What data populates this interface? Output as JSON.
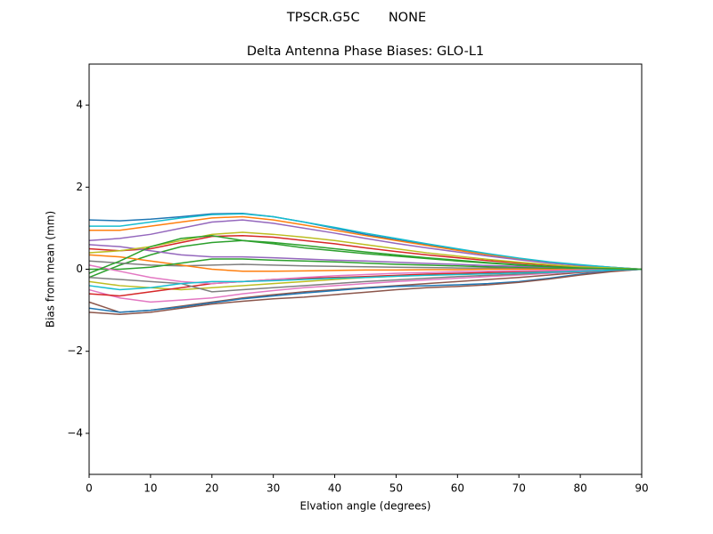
{
  "chart_data": {
    "type": "line",
    "suptitle": "TPSCR.G5C       NONE",
    "title": "Delta Antenna Phase Biases: GLO-L1",
    "xlabel": "Elvation angle (degrees)",
    "ylabel": "Bias from mean (mm)",
    "x": [
      0,
      5,
      10,
      15,
      20,
      25,
      30,
      35,
      40,
      45,
      50,
      55,
      60,
      65,
      70,
      75,
      80,
      85,
      90
    ],
    "xlim": [
      0,
      90
    ],
    "xticks": [
      0,
      10,
      20,
      30,
      40,
      50,
      60,
      70,
      80,
      90
    ],
    "ylim": [
      -5,
      5
    ],
    "yticks": [
      {
        "value": -4,
        "label": "−4"
      },
      {
        "value": -2,
        "label": "−2"
      },
      0,
      2,
      4
    ],
    "series": [
      {
        "color": "#1f77b4",
        "values": [
          1.2,
          1.18,
          1.22,
          1.28,
          1.35,
          1.36,
          1.28,
          1.15,
          1.0,
          0.85,
          0.72,
          0.6,
          0.48,
          0.36,
          0.26,
          0.17,
          0.1,
          0.05,
          0
        ]
      },
      {
        "color": "#ff7f0e",
        "values": [
          0.95,
          0.95,
          1.05,
          1.15,
          1.25,
          1.28,
          1.2,
          1.08,
          0.95,
          0.82,
          0.7,
          0.58,
          0.46,
          0.35,
          0.25,
          0.17,
          0.1,
          0.05,
          0
        ]
      },
      {
        "color": "#2ca02c",
        "values": [
          -0.2,
          0.1,
          0.35,
          0.55,
          0.65,
          0.7,
          0.65,
          0.58,
          0.5,
          0.42,
          0.35,
          0.28,
          0.22,
          0.16,
          0.11,
          0.07,
          0.04,
          0.02,
          0
        ]
      },
      {
        "color": "#d62728",
        "values": [
          0.5,
          0.45,
          0.5,
          0.65,
          0.8,
          0.82,
          0.78,
          0.7,
          0.62,
          0.52,
          0.43,
          0.35,
          0.28,
          0.21,
          0.15,
          0.1,
          0.06,
          0.03,
          0
        ]
      },
      {
        "color": "#9467bd",
        "values": [
          0.7,
          0.75,
          0.85,
          1.0,
          1.15,
          1.2,
          1.12,
          1.0,
          0.88,
          0.75,
          0.63,
          0.52,
          0.42,
          0.32,
          0.23,
          0.15,
          0.09,
          0.04,
          0
        ]
      },
      {
        "color": "#8c564b",
        "values": [
          -0.8,
          -1.05,
          -1.0,
          -0.9,
          -0.8,
          -0.7,
          -0.62,
          -0.55,
          -0.5,
          -0.45,
          -0.4,
          -0.35,
          -0.3,
          -0.25,
          -0.2,
          -0.14,
          -0.08,
          -0.04,
          0
        ]
      },
      {
        "color": "#e377c2",
        "values": [
          -0.5,
          -0.7,
          -0.8,
          -0.75,
          -0.7,
          -0.6,
          -0.52,
          -0.45,
          -0.4,
          -0.35,
          -0.3,
          -0.26,
          -0.22,
          -0.18,
          -0.14,
          -0.1,
          -0.06,
          -0.03,
          0
        ]
      },
      {
        "color": "#7f7f7f",
        "values": [
          0.2,
          0.15,
          0.1,
          0.08,
          0.1,
          0.12,
          0.1,
          0.08,
          0.07,
          0.06,
          0.05,
          0.04,
          0.03,
          0.03,
          0.02,
          0.02,
          0.01,
          0.01,
          0
        ]
      },
      {
        "color": "#bcbd22",
        "values": [
          -0.3,
          -0.4,
          -0.45,
          -0.5,
          -0.45,
          -0.4,
          -0.35,
          -0.3,
          -0.25,
          -0.2,
          -0.17,
          -0.14,
          -0.12,
          -0.1,
          -0.08,
          -0.06,
          -0.04,
          -0.02,
          0
        ]
      },
      {
        "color": "#17becf",
        "values": [
          1.05,
          1.05,
          1.15,
          1.25,
          1.33,
          1.35,
          1.28,
          1.15,
          1.02,
          0.88,
          0.75,
          0.62,
          0.5,
          0.38,
          0.27,
          0.18,
          0.11,
          0.05,
          0
        ]
      },
      {
        "color": "#1f77b4",
        "values": [
          -0.95,
          -1.05,
          -1.0,
          -0.92,
          -0.82,
          -0.72,
          -0.65,
          -0.58,
          -0.52,
          -0.46,
          -0.42,
          -0.4,
          -0.38,
          -0.35,
          -0.3,
          -0.22,
          -0.12,
          -0.05,
          0
        ]
      },
      {
        "color": "#ff7f0e",
        "values": [
          0.35,
          0.3,
          0.2,
          0.1,
          0.0,
          -0.05,
          -0.05,
          -0.04,
          -0.03,
          -0.02,
          -0.02,
          -0.01,
          -0.01,
          0,
          0,
          0,
          0,
          0,
          0
        ]
      },
      {
        "color": "#2ca02c",
        "values": [
          0.0,
          0.0,
          0.05,
          0.15,
          0.25,
          0.25,
          0.22,
          0.2,
          0.18,
          0.15,
          0.12,
          0.1,
          0.08,
          0.06,
          0.05,
          0.03,
          0.02,
          0.01,
          0
        ]
      },
      {
        "color": "#d62728",
        "values": [
          -0.6,
          -0.65,
          -0.55,
          -0.45,
          -0.35,
          -0.3,
          -0.25,
          -0.22,
          -0.2,
          -0.18,
          -0.15,
          -0.12,
          -0.1,
          -0.08,
          -0.06,
          -0.04,
          -0.03,
          -0.01,
          0
        ]
      },
      {
        "color": "#9467bd",
        "values": [
          0.6,
          0.55,
          0.45,
          0.35,
          0.3,
          0.3,
          0.28,
          0.25,
          0.22,
          0.2,
          0.17,
          0.14,
          0.12,
          0.09,
          0.07,
          0.05,
          0.03,
          0.01,
          0
        ]
      },
      {
        "color": "#8c564b",
        "values": [
          -1.05,
          -1.1,
          -1.05,
          -0.95,
          -0.85,
          -0.78,
          -0.72,
          -0.68,
          -0.62,
          -0.56,
          -0.5,
          -0.45,
          -0.42,
          -0.38,
          -0.32,
          -0.24,
          -0.14,
          -0.06,
          0
        ]
      },
      {
        "color": "#e377c2",
        "values": [
          0.1,
          -0.05,
          -0.2,
          -0.3,
          -0.35,
          -0.3,
          -0.25,
          -0.2,
          -0.16,
          -0.13,
          -0.1,
          -0.08,
          -0.06,
          -0.05,
          -0.04,
          -0.03,
          -0.02,
          -0.01,
          0
        ]
      },
      {
        "color": "#7f7f7f",
        "values": [
          -0.2,
          -0.25,
          -0.3,
          -0.35,
          -0.55,
          -0.5,
          -0.45,
          -0.4,
          -0.35,
          -0.3,
          -0.26,
          -0.22,
          -0.18,
          -0.15,
          -0.12,
          -0.08,
          -0.05,
          -0.02,
          0
        ]
      },
      {
        "color": "#bcbd22",
        "values": [
          0.4,
          0.45,
          0.55,
          0.7,
          0.85,
          0.9,
          0.85,
          0.78,
          0.7,
          0.6,
          0.5,
          0.4,
          0.32,
          0.24,
          0.17,
          0.11,
          0.06,
          0.03,
          0
        ]
      },
      {
        "color": "#17becf",
        "values": [
          -0.4,
          -0.5,
          -0.45,
          -0.35,
          -0.3,
          -0.3,
          -0.28,
          -0.25,
          -0.22,
          -0.2,
          -0.17,
          -0.15,
          -0.13,
          -0.11,
          -0.09,
          -0.07,
          -0.05,
          -0.02,
          0
        ]
      },
      {
        "color": "#2ca02c",
        "values": [
          -0.1,
          0.2,
          0.55,
          0.75,
          0.82,
          0.7,
          0.62,
          0.52,
          0.45,
          0.38,
          0.32,
          0.26,
          0.2,
          0.15,
          0.1,
          0.06,
          0.03,
          0.01,
          0
        ]
      }
    ]
  }
}
